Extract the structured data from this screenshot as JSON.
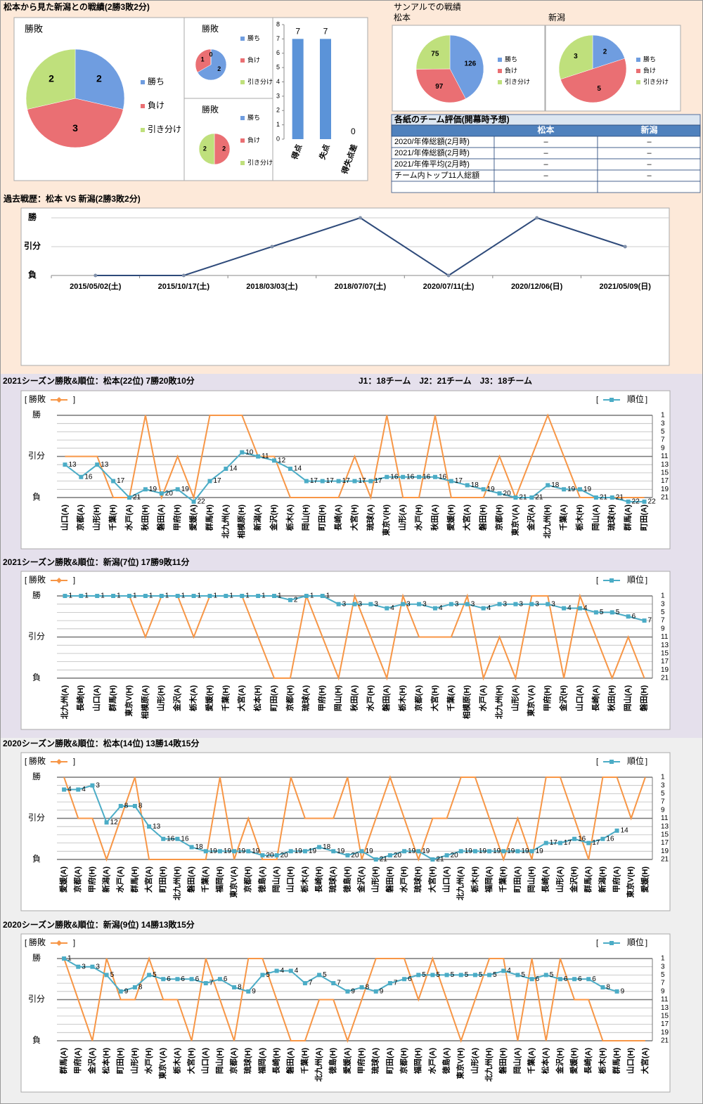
{
  "page_title": "松本から見た新潟との戦績(2勝3敗2分)",
  "record_group_title": "サンアルでの戦績",
  "table": {
    "title": "各紙のチーム評価(開幕時予想)",
    "columns": [
      "松本",
      "新潟"
    ],
    "rows": [
      {
        "label": "2020/年俸総額(2月時)",
        "values": [
          "–",
          "–"
        ]
      },
      {
        "label": "2021/年俸総額(2月時)",
        "values": [
          "–",
          "–"
        ]
      },
      {
        "label": "2021/年俸平均(2月時)",
        "values": [
          "–",
          "–"
        ]
      },
      {
        "label": "チーム内トップ11人総額",
        "values": [
          "–",
          "–"
        ]
      }
    ]
  },
  "chart_data": [
    {
      "type": "pie",
      "title": "勝敗",
      "categories": [
        "勝ち",
        "負け",
        "引き分け"
      ],
      "values": [
        2,
        3,
        2
      ],
      "colors": [
        "#6f9de0",
        "#ea6f73",
        "#bfe07c"
      ]
    },
    {
      "type": "pie",
      "title": "勝敗",
      "categories": [
        "勝ち",
        "負け",
        "引き分け"
      ],
      "values": [
        2,
        1,
        0
      ],
      "colors": [
        "#6f9de0",
        "#ea6f73",
        "#bfe07c"
      ]
    },
    {
      "type": "pie",
      "title": "勝敗",
      "categories": [
        "勝ち",
        "負け",
        "引き分け"
      ],
      "values": [
        0,
        2,
        2
      ],
      "colors": [
        "#6f9de0",
        "#ea6f73",
        "#bfe07c"
      ]
    },
    {
      "type": "bar",
      "categories": [
        "得点",
        "失点",
        "得失点差"
      ],
      "values": [
        7,
        7,
        0
      ],
      "color": "#5b93d8",
      "ylim": [
        0,
        8
      ],
      "yticks": [
        0,
        1,
        2,
        3,
        4,
        5,
        6,
        7,
        8
      ]
    },
    {
      "type": "pie",
      "title": "松本",
      "categories": [
        "勝ち",
        "負け",
        "引き分け"
      ],
      "values": [
        126,
        97,
        75
      ],
      "colors": [
        "#6f9de0",
        "#ea6f73",
        "#bfe07c"
      ]
    },
    {
      "type": "pie",
      "title": "新潟",
      "categories": [
        "勝ち",
        "負け",
        "引き分け"
      ],
      "values": [
        2,
        5,
        3
      ],
      "colors": [
        "#6f9de0",
        "#ea6f73",
        "#bfe07c"
      ]
    },
    {
      "type": "line",
      "title": "過去戦歴：松本 VS 新潟(2勝3敗2分)",
      "categories": [
        "2015/05/02(土)",
        "2015/10/17(土)",
        "2018/03/03(土)",
        "2018/07/07(土)",
        "2020/07/11(土)",
        "2020/12/06(日)",
        "2021/05/09(日)"
      ],
      "values": [
        0,
        0,
        1,
        2,
        0,
        2,
        1
      ],
      "color": "#2e4a7a",
      "ylim": [
        0,
        2
      ],
      "yticks": [
        {
          "value": 0,
          "label": "負"
        },
        {
          "value": 1,
          "label": "引分"
        },
        {
          "value": 2,
          "label": "勝"
        }
      ],
      "grid": true
    },
    {
      "type": "combo",
      "title": "2021シーズン勝敗&順位：松本(22位) 7勝20敗10分",
      "note": "J1：18チーム　J2：21チーム　J3：18チーム",
      "categories": [
        "山口(A)",
        "京都(A)",
        "山形(H)",
        "千葉(H)",
        "水戸(A)",
        "秋田(H)",
        "磐田(A)",
        "甲府(H)",
        "愛媛(A)",
        "群馬(H)",
        "北九州(A)",
        "相模原(H)",
        "新潟(A)",
        "金沢(H)",
        "栃木(A)",
        "岡山(H)",
        "町田(H)",
        "長崎(A)",
        "大宮(H)",
        "琉球(A)",
        "東京V(H)",
        "山形(A)",
        "水戸(H)",
        "秋田(A)",
        "愛媛(H)",
        "大宮(A)",
        "磐田(H)",
        "京都(H)",
        "東京V(A)",
        "金沢(A)",
        "北九州(H)",
        "千葉(A)",
        "栃木(H)",
        "岡山(A)",
        "琉球(H)",
        "群馬(A)",
        "町田(A)"
      ],
      "series": [
        {
          "name": "勝敗",
          "color": "#f79646",
          "values": [
            1,
            1,
            1,
            0,
            0,
            2,
            0,
            1,
            0,
            2,
            2,
            2,
            1,
            1,
            0,
            0,
            0,
            0,
            1,
            0,
            2,
            0,
            0,
            2,
            0,
            0,
            0,
            1,
            0,
            1,
            2,
            1,
            0,
            0,
            0,
            0,
            0
          ]
        },
        {
          "name": "順位",
          "color": "#4bacc6",
          "axis": "y2",
          "values": [
            13,
            16,
            13,
            17,
            21,
            19,
            20,
            19,
            22,
            17,
            14,
            10,
            11,
            12,
            14,
            17,
            17,
            17,
            17,
            17,
            16,
            16,
            16,
            16,
            17,
            18,
            19,
            20,
            21,
            21,
            18,
            19,
            19,
            21,
            21,
            22,
            22
          ]
        }
      ],
      "ylim": [
        0,
        2
      ],
      "yticks": [
        {
          "value": 0,
          "label": "負"
        },
        {
          "value": 1,
          "label": "引分"
        },
        {
          "value": 2,
          "label": "勝"
        }
      ],
      "y2lim": [
        1,
        21
      ],
      "y2_inverted": true,
      "y2ticks": [
        1,
        3,
        5,
        7,
        9,
        11,
        13,
        15,
        17,
        19,
        21
      ],
      "grid": true
    },
    {
      "type": "combo",
      "title": "2021シーズン勝敗&順位：新潟(7位) 17勝9敗11分",
      "categories": [
        "北九州(A)",
        "長崎(H)",
        "山口(A)",
        "群馬(H)",
        "東京V(H)",
        "相模原(A)",
        "山形(H)",
        "金沢(A)",
        "栃木(A)",
        "愛媛(H)",
        "千葉(H)",
        "大宮(A)",
        "松本(H)",
        "町田(A)",
        "京都(H)",
        "琉球(A)",
        "甲府(H)",
        "岡山(H)",
        "秋田(A)",
        "水戸(H)",
        "磐田(A)",
        "栃木(H)",
        "京都(A)",
        "大宮(H)",
        "千葉(A)",
        "相模原(H)",
        "水戸(A)",
        "北九州(H)",
        "山形(A)",
        "東京V(A)",
        "甲府(H)",
        "金沢(H)",
        "山口(A)",
        "長崎(A)",
        "秋田(H)",
        "岡山(A)",
        "磐田(H)"
      ],
      "series": [
        {
          "name": "勝敗",
          "color": "#f79646",
          "values": [
            2,
            2,
            2,
            2,
            2,
            1,
            2,
            2,
            1,
            2,
            2,
            2,
            1,
            0,
            0,
            2,
            1,
            0,
            2,
            1,
            0,
            2,
            1,
            1,
            1,
            2,
            0,
            1,
            0,
            2,
            2,
            0,
            2,
            1,
            0,
            1,
            0
          ]
        },
        {
          "name": "順位",
          "color": "#4bacc6",
          "axis": "y2",
          "values": [
            1,
            1,
            1,
            1,
            1,
            1,
            1,
            1,
            1,
            1,
            1,
            1,
            1,
            1,
            2,
            1,
            1,
            3,
            3,
            3,
            4,
            3,
            3,
            4,
            3,
            3,
            4,
            3,
            3,
            3,
            3,
            4,
            4,
            5,
            5,
            6,
            7
          ]
        }
      ],
      "ylim": [
        0,
        2
      ],
      "yticks": [
        {
          "value": 0,
          "label": "負"
        },
        {
          "value": 1,
          "label": "引分"
        },
        {
          "value": 2,
          "label": "勝"
        }
      ],
      "y2lim": [
        1,
        21
      ],
      "y2_inverted": true,
      "y2ticks": [
        1,
        3,
        5,
        7,
        9,
        11,
        13,
        15,
        17,
        19,
        21
      ],
      "grid": true
    },
    {
      "type": "combo",
      "title": "2020シーズン勝敗&順位：松本(14位) 13勝14敗15分",
      "categories": [
        "愛媛(A)",
        "京都(A)",
        "甲府(H)",
        "新潟(A)",
        "水戸(A)",
        "群馬(H)",
        "大宮(A)",
        "町田(H)",
        "北九州(H)",
        "磐田(A)",
        "千葉(A)",
        "福岡(H)",
        "東京V(A)",
        "京都(H)",
        "徳島(A)",
        "岡山(A)",
        "山口(H)",
        "栃木(A)",
        "長崎(H)",
        "琉球(A)",
        "徳島(H)",
        "金沢(A)",
        "山形(H)",
        "磐田(H)",
        "水戸(H)",
        "琉球(H)",
        "大宮(H)",
        "山口(A)",
        "北九州(A)",
        "栃木(H)",
        "福岡(A)",
        "千葉(H)",
        "町田(A)",
        "岡山(H)",
        "長崎(A)",
        "山形(A)",
        "金沢(H)",
        "群馬(A)",
        "新潟(H)",
        "甲府(A)",
        "東京V(H)",
        "愛媛(H)"
      ],
      "series": [
        {
          "name": "勝敗",
          "color": "#f79646",
          "values": [
            2,
            1,
            1,
            0,
            1,
            2,
            0,
            0,
            0,
            0,
            0,
            2,
            0,
            1,
            0,
            0,
            2,
            1,
            1,
            1,
            2,
            0,
            1,
            2,
            1,
            0,
            1,
            1,
            2,
            2,
            1,
            0,
            1,
            0,
            2,
            2,
            1,
            0,
            2,
            2,
            1,
            2
          ]
        },
        {
          "name": "順位",
          "color": "#4bacc6",
          "axis": "y2",
          "values": [
            4,
            4,
            3,
            12,
            8,
            8,
            13,
            16,
            16,
            18,
            19,
            19,
            19,
            19,
            20,
            20,
            19,
            19,
            18,
            19,
            20,
            19,
            21,
            20,
            19,
            19,
            21,
            20,
            19,
            19,
            19,
            19,
            19,
            19,
            17,
            17,
            16,
            17,
            16,
            14,
            null,
            null
          ]
        }
      ],
      "ylim": [
        0,
        2
      ],
      "yticks": [
        {
          "value": 0,
          "label": "負"
        },
        {
          "value": 1,
          "label": "引分"
        },
        {
          "value": 2,
          "label": "勝"
        }
      ],
      "y2lim": [
        1,
        21
      ],
      "y2_inverted": true,
      "y2ticks": [
        1,
        3,
        5,
        7,
        9,
        11,
        13,
        15,
        17,
        19,
        21
      ],
      "grid": true
    },
    {
      "type": "combo",
      "title": "2020シーズン勝敗&順位：新潟(9位) 14勝13敗15分",
      "categories": [
        "群馬(A)",
        "甲府(A)",
        "金沢(A)",
        "松本(H)",
        "町田(H)",
        "山形(H)",
        "水戸(H)",
        "東京V(A)",
        "栃木(A)",
        "大宮(H)",
        "山口(A)",
        "岡山(H)",
        "京都(A)",
        "琉球(H)",
        "福岡(A)",
        "長崎(H)",
        "磐田(A)",
        "千葉(H)",
        "北九州(A)",
        "徳島(H)",
        "愛媛(A)",
        "甲府(H)",
        "琉球(A)",
        "町田(A)",
        "京都(H)",
        "福岡(H)",
        "水戸(A)",
        "徳島(A)",
        "東京V(H)",
        "山形(A)",
        "北九州(H)",
        "磐田(H)",
        "岡山(A)",
        "千葉(A)",
        "松本(A)",
        "金沢(H)",
        "愛媛(H)",
        "長崎(A)",
        "栃木(H)",
        "群馬(H)",
        "山口(H)",
        "大宮(A)"
      ],
      "series": [
        {
          "name": "勝敗",
          "color": "#f79646",
          "values": [
            2,
            1,
            0,
            2,
            1,
            1,
            2,
            1,
            1,
            0,
            2,
            1,
            0,
            2,
            2,
            1,
            0,
            0,
            1,
            1,
            0,
            1,
            2,
            2,
            2,
            1,
            2,
            1,
            0,
            1,
            2,
            2,
            0,
            2,
            0,
            2,
            1,
            1,
            0,
            0,
            0,
            0
          ]
        },
        {
          "name": "順位",
          "color": "#4bacc6",
          "axis": "y2",
          "values": [
            1,
            3,
            3,
            5,
            9,
            8,
            5,
            6,
            6,
            6,
            7,
            6,
            8,
            9,
            5,
            4,
            4,
            7,
            5,
            7,
            9,
            8,
            9,
            7,
            6,
            5,
            5,
            5,
            5,
            5,
            5,
            4,
            5,
            6,
            5,
            6,
            6,
            6,
            8,
            9,
            null,
            null
          ]
        }
      ],
      "ylim": [
        0,
        2
      ],
      "yticks": [
        {
          "value": 0,
          "label": "負"
        },
        {
          "value": 1,
          "label": "引分"
        },
        {
          "value": 2,
          "label": "勝"
        }
      ],
      "y2lim": [
        1,
        21
      ],
      "y2_inverted": true,
      "y2ticks": [
        1,
        3,
        5,
        7,
        9,
        11,
        13,
        15,
        17,
        19,
        21
      ],
      "grid": true
    }
  ]
}
